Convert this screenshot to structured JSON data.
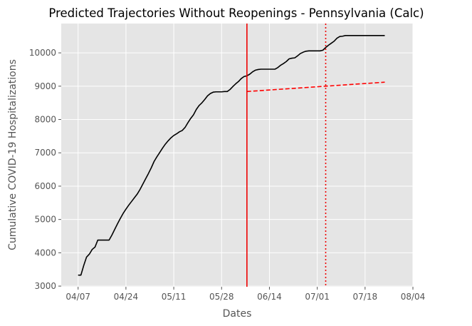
{
  "chart_data": {
    "type": "line",
    "title": "Predicted Trajectories Without Reopenings - Pennsylvania (Calc)",
    "xlabel": "Dates",
    "ylabel": "Cumulative COVID-19 Hospitalizations",
    "x_ticks": [
      "04/07",
      "04/24",
      "05/11",
      "05/28",
      "06/14",
      "07/01",
      "07/18",
      "08/04"
    ],
    "y_ticks": [
      "3000",
      "4000",
      "5000",
      "6000",
      "7000",
      "8000",
      "9000",
      "10000"
    ],
    "xlim": [
      "2020-04-01",
      "2020-08-04"
    ],
    "ylim": [
      2980,
      10880
    ],
    "grid": true,
    "background": "#e5e5e5",
    "series": [
      {
        "color": "#000000",
        "style": "solid",
        "x": [
          "2020-04-07",
          "2020-04-08",
          "2020-04-09",
          "2020-04-10",
          "2020-04-11",
          "2020-04-12",
          "2020-04-13",
          "2020-04-14",
          "2020-04-15",
          "2020-04-16",
          "2020-04-17",
          "2020-04-18",
          "2020-04-19",
          "2020-04-20",
          "2020-04-21",
          "2020-04-22",
          "2020-04-23",
          "2020-04-24",
          "2020-04-25",
          "2020-04-26",
          "2020-04-27",
          "2020-04-28",
          "2020-04-29",
          "2020-04-30",
          "2020-05-01",
          "2020-05-02",
          "2020-05-03",
          "2020-05-04",
          "2020-05-05",
          "2020-05-06",
          "2020-05-07",
          "2020-05-08",
          "2020-05-09",
          "2020-05-10",
          "2020-05-11",
          "2020-05-12",
          "2020-05-13",
          "2020-05-14",
          "2020-05-15",
          "2020-05-16",
          "2020-05-17",
          "2020-05-18",
          "2020-05-19",
          "2020-05-20",
          "2020-05-21",
          "2020-05-22",
          "2020-05-23",
          "2020-05-24",
          "2020-05-25",
          "2020-05-26",
          "2020-05-27",
          "2020-05-28",
          "2020-05-29",
          "2020-05-30",
          "2020-05-31",
          "2020-06-01",
          "2020-06-02",
          "2020-06-03",
          "2020-06-04",
          "2020-06-05",
          "2020-06-06",
          "2020-06-07",
          "2020-06-08",
          "2020-06-09",
          "2020-06-10",
          "2020-06-11",
          "2020-06-12",
          "2020-06-13",
          "2020-06-14",
          "2020-06-15",
          "2020-06-16",
          "2020-06-17",
          "2020-06-18",
          "2020-06-19",
          "2020-06-20",
          "2020-06-21",
          "2020-06-22",
          "2020-06-23",
          "2020-06-24",
          "2020-06-25",
          "2020-06-26",
          "2020-06-27",
          "2020-06-28",
          "2020-06-29",
          "2020-06-30",
          "2020-07-01",
          "2020-07-02",
          "2020-07-03",
          "2020-07-04",
          "2020-07-05",
          "2020-07-06",
          "2020-07-07",
          "2020-07-08",
          "2020-07-09",
          "2020-07-10",
          "2020-07-11",
          "2020-07-12",
          "2020-07-13",
          "2020-07-14",
          "2020-07-15",
          "2020-07-16",
          "2020-07-17",
          "2020-07-18",
          "2020-07-19",
          "2020-07-20",
          "2020-07-21",
          "2020-07-22",
          "2020-07-23",
          "2020-07-24",
          "2020-07-25"
        ],
        "y": [
          3330,
          3330,
          3620,
          3870,
          3960,
          4100,
          4170,
          4380,
          4380,
          4380,
          4380,
          4380,
          4530,
          4700,
          4870,
          5030,
          5180,
          5310,
          5430,
          5540,
          5650,
          5760,
          5900,
          6060,
          6220,
          6380,
          6550,
          6740,
          6880,
          7010,
          7140,
          7260,
          7360,
          7450,
          7520,
          7570,
          7630,
          7670,
          7760,
          7900,
          8030,
          8140,
          8300,
          8420,
          8500,
          8600,
          8710,
          8780,
          8820,
          8830,
          8830,
          8830,
          8840,
          8840,
          8900,
          8990,
          9070,
          9140,
          9230,
          9290,
          9310,
          9360,
          9430,
          9480,
          9500,
          9510,
          9510,
          9510,
          9510,
          9510,
          9510,
          9560,
          9630,
          9680,
          9740,
          9820,
          9840,
          9850,
          9910,
          9980,
          10020,
          10050,
          10060,
          10060,
          10060,
          10060,
          10060,
          10080,
          10160,
          10230,
          10290,
          10350,
          10440,
          10490,
          10500,
          10520,
          10520,
          10520,
          10520,
          10520,
          10520,
          10520,
          10520,
          10520,
          10520,
          10520,
          10520,
          10520,
          10520,
          10520
        ]
      },
      {
        "color": "#ff0000",
        "style": "dashed",
        "x": [
          "2020-06-06",
          "2020-07-25"
        ],
        "y": [
          8840,
          9120
        ]
      }
    ],
    "vlines": [
      {
        "x": "2020-06-06",
        "color": "#ee0000",
        "style": "solid"
      },
      {
        "x": "2020-07-04",
        "color": "#ee0000",
        "style": "dotted"
      }
    ]
  }
}
